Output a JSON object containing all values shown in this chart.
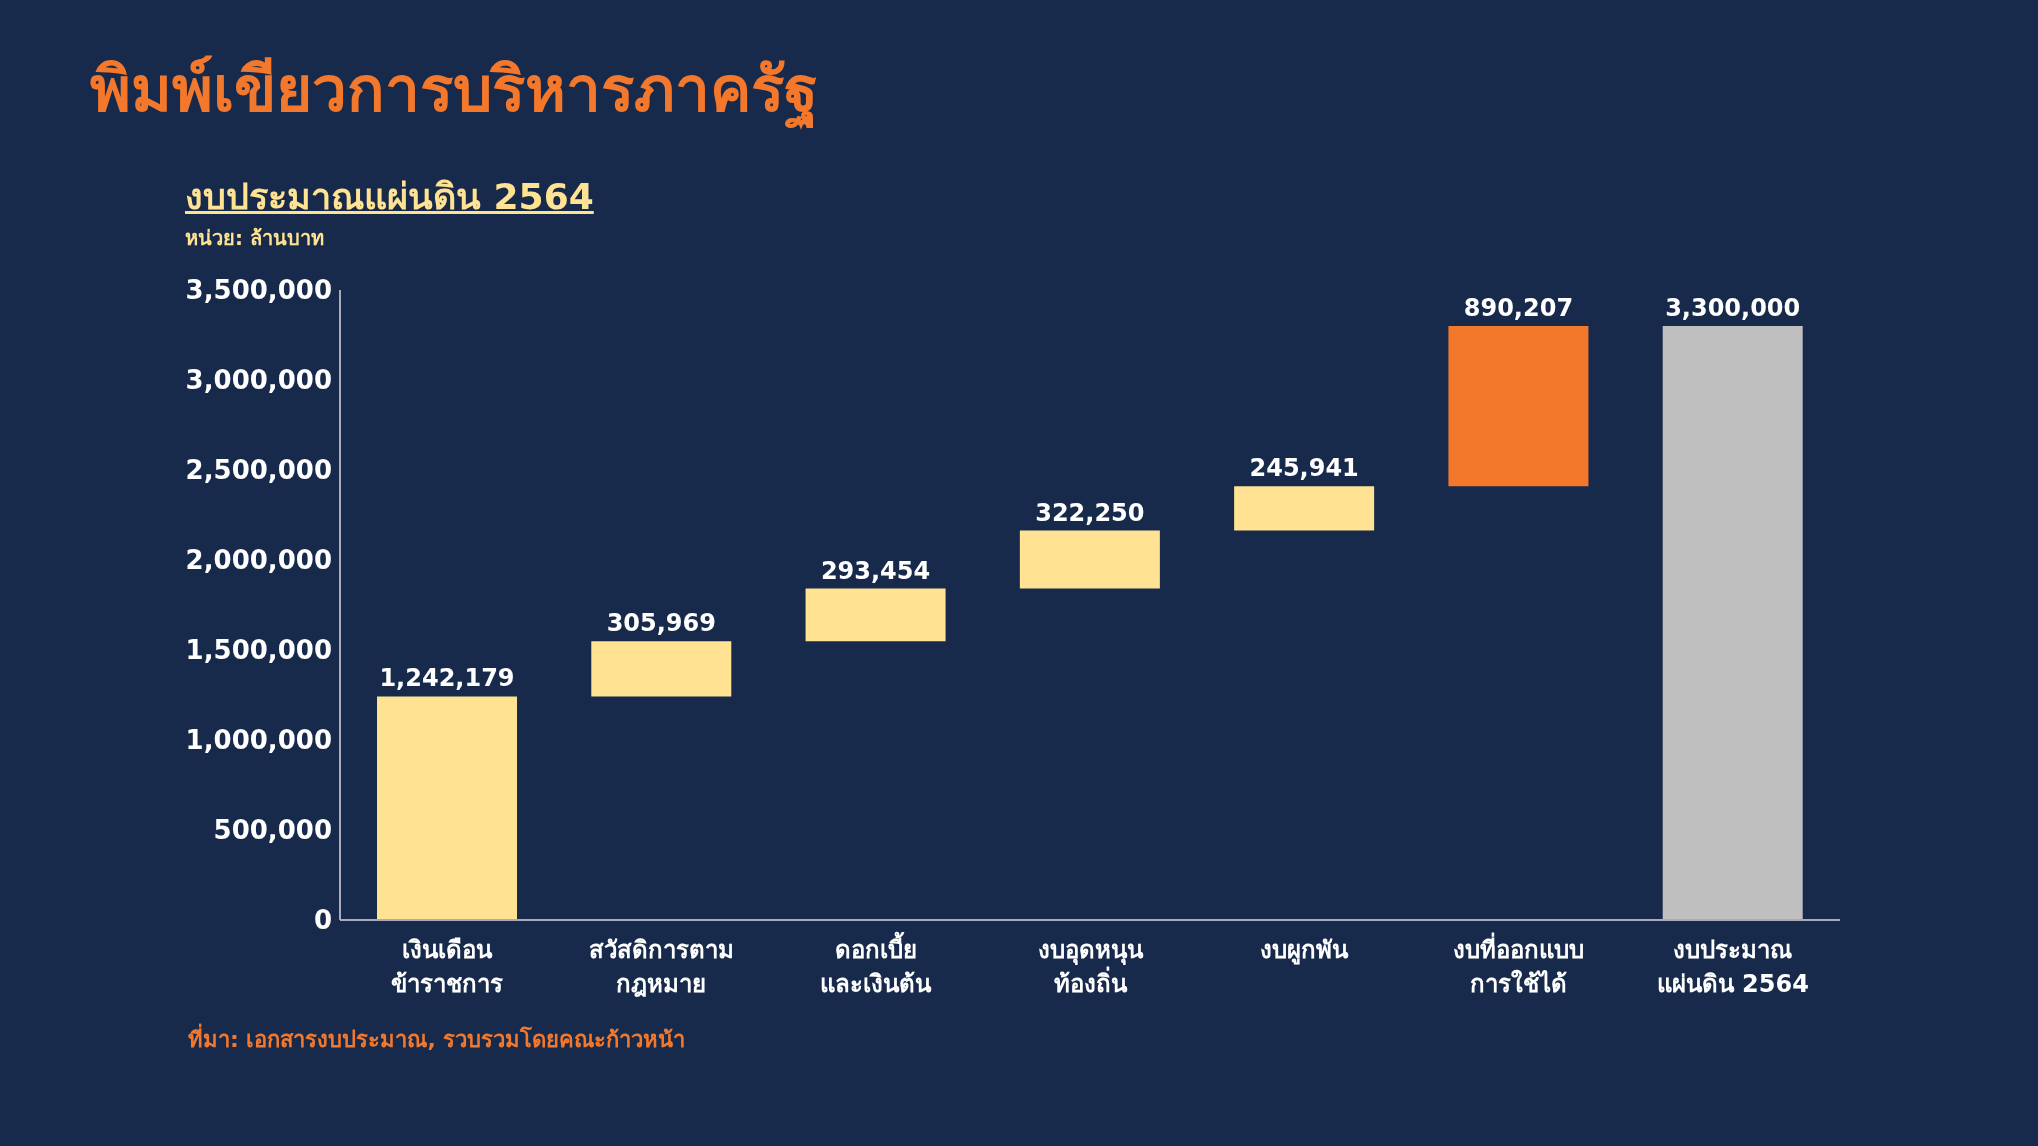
{
  "chart_data": {
    "type": "bar",
    "title": "พิมพ์เขียวการบริหารภาครัฐ",
    "subtitle": "งบประมาณแผ่นดิน 2564",
    "ylabel": "หน่วย: ล้านบาท",
    "annotations": [
      "ที่มา: เอกสารงบประมาณ, รวบรวมโดยคณะก้าวหน้า"
    ],
    "categories": [
      "เงินเดือน\nข้าราชการ",
      "สวัสดิการตาม\nกฎหมาย",
      "ดอกเบี้ย\nและเงินต้น",
      "งบอุดหนุน\nท้องถิ่น",
      "งบผูกพัน",
      "งบที่ออกแบบ\nการใช้ได้",
      "งบประมาณ\nแผ่นดิน 2564"
    ],
    "values": [
      1242179,
      305969,
      293454,
      322250,
      245941,
      890207,
      3300000
    ],
    "base": [
      0,
      1242179,
      1548148,
      1841602,
      2163852,
      2409793,
      0
    ],
    "colors": [
      "#ffe393",
      "#ffe393",
      "#ffe393",
      "#ffe393",
      "#ffe393",
      "#f4782c",
      "#bfbfbf"
    ],
    "value_labels": [
      "1,242,179",
      "305,969",
      "293,454",
      "322,250",
      "245,941",
      "890,207",
      "3,300,000"
    ],
    "ylim": [
      0,
      3500000
    ],
    "yticks": [
      0,
      {
        "value": 500000,
        "label": "500,000"
      },
      {
        "value": 1000000,
        "label": "1,000,000"
      },
      {
        "value": 1500000,
        "label": "1,500,000"
      },
      {
        "value": 2000000,
        "label": "2,000,000"
      },
      {
        "value": 2500000,
        "label": "2,500,000"
      },
      {
        "value": 3000000,
        "label": "3,000,000"
      },
      {
        "value": 3500000,
        "label": "3,500,000"
      }
    ],
    "grid": false,
    "legend": false
  }
}
